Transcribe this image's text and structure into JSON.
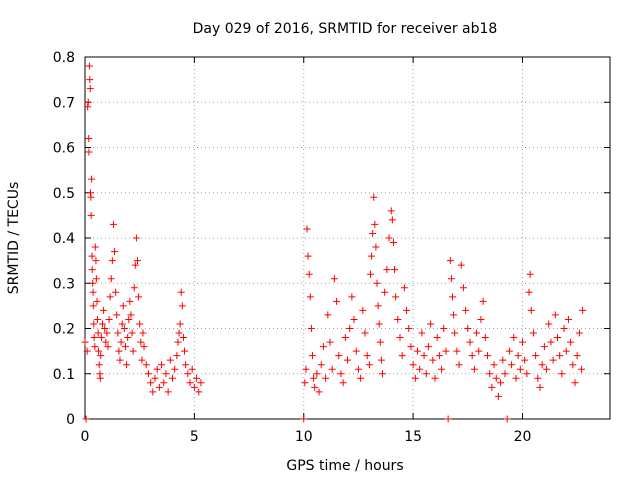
{
  "chart_data": {
    "type": "scatter",
    "title": "Day 029 of 2016, SRMTID for receiver ab18",
    "xlabel": "GPS time / hours",
    "ylabel": "SRMTID / TECUs",
    "xlim": [
      0,
      24
    ],
    "ylim": [
      0,
      0.8
    ],
    "xticks": [
      0,
      5,
      10,
      15,
      20
    ],
    "xtick_labels": [
      "0",
      "5",
      "10",
      "15",
      "20"
    ],
    "yticks": [
      0,
      0.1,
      0.2,
      0.3,
      0.4,
      0.5,
      0.6,
      0.7,
      0.8
    ],
    "ytick_labels": [
      "0",
      "0.1",
      "0.2",
      "0.3",
      "0.4",
      "0.5",
      "0.6",
      "0.7",
      "0.8"
    ],
    "grid": true,
    "marker": "+",
    "color": "#ff0000",
    "series": [
      {
        "name": "SRMTID",
        "points": [
          [
            0.0,
            0.17
          ],
          [
            0.05,
            0.0
          ],
          [
            0.1,
            0.15
          ],
          [
            0.12,
            0.69
          ],
          [
            0.15,
            0.7
          ],
          [
            0.17,
            0.62
          ],
          [
            0.18,
            0.59
          ],
          [
            0.2,
            0.78
          ],
          [
            0.22,
            0.75
          ],
          [
            0.24,
            0.73
          ],
          [
            0.25,
            0.5
          ],
          [
            0.27,
            0.49
          ],
          [
            0.28,
            0.45
          ],
          [
            0.3,
            0.53
          ],
          [
            0.32,
            0.36
          ],
          [
            0.33,
            0.33
          ],
          [
            0.35,
            0.3
          ],
          [
            0.37,
            0.28
          ],
          [
            0.38,
            0.25
          ],
          [
            0.4,
            0.21
          ],
          [
            0.42,
            0.18
          ],
          [
            0.45,
            0.16
          ],
          [
            0.47,
            0.38
          ],
          [
            0.5,
            0.35
          ],
          [
            0.52,
            0.31
          ],
          [
            0.55,
            0.26
          ],
          [
            0.57,
            0.22
          ],
          [
            0.6,
            0.19
          ],
          [
            0.62,
            0.15
          ],
          [
            0.65,
            0.12
          ],
          [
            0.68,
            0.1
          ],
          [
            0.7,
            0.09
          ],
          [
            0.72,
            0.14
          ],
          [
            0.75,
            0.18
          ],
          [
            0.8,
            0.21
          ],
          [
            0.85,
            0.24
          ],
          [
            0.9,
            0.2
          ],
          [
            0.95,
            0.17
          ],
          [
            1.0,
            0.19
          ],
          [
            1.05,
            0.16
          ],
          [
            1.1,
            0.22
          ],
          [
            1.15,
            0.27
          ],
          [
            1.2,
            0.31
          ],
          [
            1.25,
            0.35
          ],
          [
            1.3,
            0.43
          ],
          [
            1.35,
            0.37
          ],
          [
            1.4,
            0.28
          ],
          [
            1.45,
            0.23
          ],
          [
            1.5,
            0.19
          ],
          [
            1.55,
            0.15
          ],
          [
            1.6,
            0.13
          ],
          [
            1.65,
            0.17
          ],
          [
            1.7,
            0.21
          ],
          [
            1.75,
            0.25
          ],
          [
            1.8,
            0.2
          ],
          [
            1.85,
            0.16
          ],
          [
            1.9,
            0.12
          ],
          [
            1.95,
            0.18
          ],
          [
            2.0,
            0.22
          ],
          [
            2.05,
            0.26
          ],
          [
            2.1,
            0.23
          ],
          [
            2.15,
            0.19
          ],
          [
            2.2,
            0.15
          ],
          [
            2.25,
            0.29
          ],
          [
            2.3,
            0.34
          ],
          [
            2.35,
            0.4
          ],
          [
            2.4,
            0.35
          ],
          [
            2.45,
            0.27
          ],
          [
            2.5,
            0.21
          ],
          [
            2.55,
            0.17
          ],
          [
            2.6,
            0.13
          ],
          [
            2.65,
            0.19
          ],
          [
            2.7,
            0.16
          ],
          [
            2.8,
            0.12
          ],
          [
            2.9,
            0.1
          ],
          [
            3.0,
            0.08
          ],
          [
            3.1,
            0.06
          ],
          [
            3.2,
            0.09
          ],
          [
            3.3,
            0.11
          ],
          [
            3.4,
            0.07
          ],
          [
            3.5,
            0.12
          ],
          [
            3.6,
            0.08
          ],
          [
            3.7,
            0.1
          ],
          [
            3.8,
            0.06
          ],
          [
            3.9,
            0.13
          ],
          [
            4.0,
            0.09
          ],
          [
            4.1,
            0.11
          ],
          [
            4.2,
            0.14
          ],
          [
            4.25,
            0.17
          ],
          [
            4.3,
            0.19
          ],
          [
            4.35,
            0.21
          ],
          [
            4.4,
            0.28
          ],
          [
            4.45,
            0.25
          ],
          [
            4.5,
            0.18
          ],
          [
            4.55,
            0.15
          ],
          [
            4.6,
            0.12
          ],
          [
            4.7,
            0.1
          ],
          [
            4.8,
            0.08
          ],
          [
            4.9,
            0.11
          ],
          [
            5.0,
            0.07
          ],
          [
            5.1,
            0.09
          ],
          [
            5.2,
            0.06
          ],
          [
            5.3,
            0.08
          ],
          [
            10.0,
            0.0
          ],
          [
            10.05,
            0.08
          ],
          [
            10.1,
            0.11
          ],
          [
            10.15,
            0.42
          ],
          [
            10.2,
            0.36
          ],
          [
            10.25,
            0.32
          ],
          [
            10.3,
            0.27
          ],
          [
            10.35,
            0.2
          ],
          [
            10.4,
            0.14
          ],
          [
            10.45,
            0.09
          ],
          [
            10.5,
            0.07
          ],
          [
            10.6,
            0.1
          ],
          [
            10.7,
            0.06
          ],
          [
            10.8,
            0.12
          ],
          [
            10.9,
            0.16
          ],
          [
            11.0,
            0.09
          ],
          [
            11.1,
            0.23
          ],
          [
            11.2,
            0.17
          ],
          [
            11.3,
            0.11
          ],
          [
            11.4,
            0.31
          ],
          [
            11.5,
            0.26
          ],
          [
            11.6,
            0.14
          ],
          [
            11.7,
            0.1
          ],
          [
            11.8,
            0.08
          ],
          [
            11.9,
            0.18
          ],
          [
            12.0,
            0.13
          ],
          [
            12.1,
            0.2
          ],
          [
            12.2,
            0.27
          ],
          [
            12.3,
            0.22
          ],
          [
            12.4,
            0.15
          ],
          [
            12.5,
            0.11
          ],
          [
            12.6,
            0.09
          ],
          [
            12.7,
            0.24
          ],
          [
            12.8,
            0.19
          ],
          [
            12.9,
            0.14
          ],
          [
            13.0,
            0.12
          ],
          [
            13.05,
            0.32
          ],
          [
            13.1,
            0.36
          ],
          [
            13.15,
            0.41
          ],
          [
            13.2,
            0.49
          ],
          [
            13.25,
            0.43
          ],
          [
            13.3,
            0.38
          ],
          [
            13.35,
            0.3
          ],
          [
            13.4,
            0.25
          ],
          [
            13.45,
            0.21
          ],
          [
            13.5,
            0.17
          ],
          [
            13.55,
            0.13
          ],
          [
            13.6,
            0.1
          ],
          [
            13.7,
            0.28
          ],
          [
            13.8,
            0.33
          ],
          [
            13.9,
            0.4
          ],
          [
            14.0,
            0.46
          ],
          [
            14.05,
            0.44
          ],
          [
            14.1,
            0.39
          ],
          [
            14.15,
            0.33
          ],
          [
            14.2,
            0.27
          ],
          [
            14.3,
            0.22
          ],
          [
            14.4,
            0.18
          ],
          [
            14.5,
            0.14
          ],
          [
            14.6,
            0.29
          ],
          [
            14.7,
            0.24
          ],
          [
            14.8,
            0.2
          ],
          [
            14.9,
            0.16
          ],
          [
            15.0,
            0.12
          ],
          [
            15.1,
            0.09
          ],
          [
            15.2,
            0.15
          ],
          [
            15.3,
            0.11
          ],
          [
            15.4,
            0.19
          ],
          [
            15.5,
            0.14
          ],
          [
            15.6,
            0.1
          ],
          [
            15.7,
            0.16
          ],
          [
            15.8,
            0.21
          ],
          [
            15.9,
            0.13
          ],
          [
            16.0,
            0.09
          ],
          [
            16.1,
            0.18
          ],
          [
            16.2,
            0.14
          ],
          [
            16.3,
            0.11
          ],
          [
            16.4,
            0.2
          ],
          [
            16.5,
            0.15
          ],
          [
            16.6,
            0.0
          ],
          [
            16.7,
            0.35
          ],
          [
            16.75,
            0.31
          ],
          [
            16.8,
            0.27
          ],
          [
            16.85,
            0.23
          ],
          [
            16.9,
            0.19
          ],
          [
            17.0,
            0.15
          ],
          [
            17.1,
            0.12
          ],
          [
            17.2,
            0.34
          ],
          [
            17.3,
            0.29
          ],
          [
            17.4,
            0.24
          ],
          [
            17.5,
            0.2
          ],
          [
            17.6,
            0.17
          ],
          [
            17.7,
            0.14
          ],
          [
            17.8,
            0.11
          ],
          [
            17.9,
            0.19
          ],
          [
            18.0,
            0.15
          ],
          [
            18.1,
            0.22
          ],
          [
            18.2,
            0.26
          ],
          [
            18.3,
            0.18
          ],
          [
            18.4,
            0.14
          ],
          [
            18.5,
            0.1
          ],
          [
            18.6,
            0.07
          ],
          [
            18.7,
            0.12
          ],
          [
            18.8,
            0.09
          ],
          [
            18.9,
            0.05
          ],
          [
            19.0,
            0.08
          ],
          [
            19.1,
            0.13
          ],
          [
            19.2,
            0.1
          ],
          [
            19.3,
            0.0
          ],
          [
            19.4,
            0.15
          ],
          [
            19.5,
            0.12
          ],
          [
            19.6,
            0.18
          ],
          [
            19.7,
            0.09
          ],
          [
            19.8,
            0.14
          ],
          [
            19.9,
            0.11
          ],
          [
            20.0,
            0.17
          ],
          [
            20.1,
            0.13
          ],
          [
            20.2,
            0.1
          ],
          [
            20.3,
            0.28
          ],
          [
            20.35,
            0.32
          ],
          [
            20.4,
            0.24
          ],
          [
            20.5,
            0.19
          ],
          [
            20.6,
            0.14
          ],
          [
            20.7,
            0.09
          ],
          [
            20.8,
            0.07
          ],
          [
            20.9,
            0.12
          ],
          [
            21.0,
            0.16
          ],
          [
            21.1,
            0.11
          ],
          [
            21.2,
            0.21
          ],
          [
            21.3,
            0.17
          ],
          [
            21.4,
            0.13
          ],
          [
            21.5,
            0.23
          ],
          [
            21.6,
            0.18
          ],
          [
            21.7,
            0.14
          ],
          [
            21.8,
            0.1
          ],
          [
            21.9,
            0.2
          ],
          [
            22.0,
            0.15
          ],
          [
            22.1,
            0.22
          ],
          [
            22.2,
            0.17
          ],
          [
            22.3,
            0.12
          ],
          [
            22.4,
            0.08
          ],
          [
            22.5,
            0.14
          ],
          [
            22.6,
            0.19
          ],
          [
            22.7,
            0.11
          ],
          [
            22.75,
            0.24
          ]
        ]
      }
    ]
  }
}
